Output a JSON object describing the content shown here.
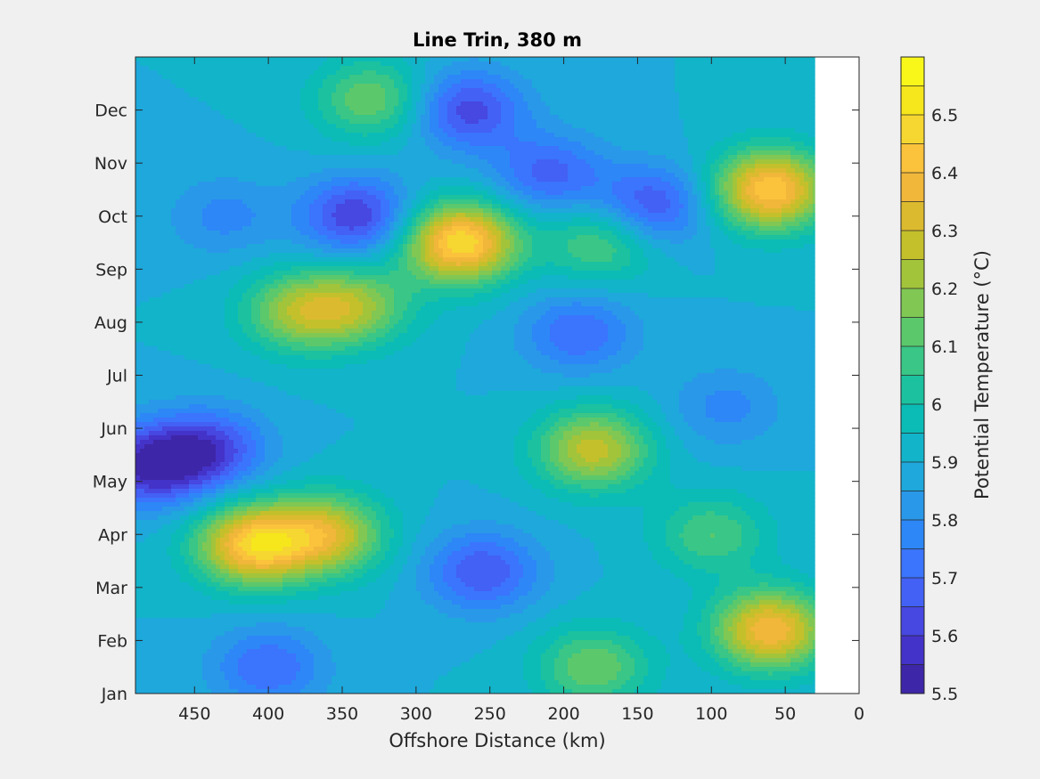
{
  "chart_data": {
    "type": "heatmap",
    "title": "Line Trin, 380 m",
    "xlabel": "Offshore Distance (km)",
    "x_ticks": [
      450,
      400,
      350,
      300,
      250,
      200,
      150,
      100,
      50,
      0
    ],
    "xlim": [
      490,
      0
    ],
    "x_reversed": true,
    "data_extent_km": [
      490,
      30
    ],
    "y_ticks": [
      "Jan",
      "Feb",
      "Mar",
      "Apr",
      "May",
      "Jun",
      "Jul",
      "Aug",
      "Sep",
      "Oct",
      "Nov",
      "Dec"
    ],
    "colorbar": {
      "label": "Potential Temperature (°C)",
      "ticks": [
        5.5,
        5.6,
        5.7,
        5.8,
        5.9,
        6,
        6.1,
        6.2,
        6.3,
        6.4,
        6.5
      ],
      "range": [
        5.5,
        6.6
      ],
      "levels": 22,
      "colormap": "parula"
    },
    "background_value": 5.9,
    "features": [
      {
        "x": 480,
        "month": 4.3,
        "value": 5.55
      },
      {
        "x": 440,
        "month": 4.6,
        "value": 5.62
      },
      {
        "x": 410,
        "month": 2.8,
        "value": 6.45
      },
      {
        "x": 360,
        "month": 3.0,
        "value": 6.3
      },
      {
        "x": 380,
        "month": 7.2,
        "value": 6.2
      },
      {
        "x": 340,
        "month": 7.3,
        "value": 6.18
      },
      {
        "x": 270,
        "month": 8.5,
        "value": 6.5
      },
      {
        "x": 340,
        "month": 9.0,
        "value": 5.6
      },
      {
        "x": 255,
        "month": 2.3,
        "value": 5.65
      },
      {
        "x": 265,
        "month": 11.0,
        "value": 5.62
      },
      {
        "x": 210,
        "month": 9.8,
        "value": 5.68
      },
      {
        "x": 140,
        "month": 9.2,
        "value": 5.64
      },
      {
        "x": 175,
        "month": 8.5,
        "value": 6.12
      },
      {
        "x": 180,
        "month": 4.6,
        "value": 6.28
      },
      {
        "x": 180,
        "month": 0.5,
        "value": 6.15
      },
      {
        "x": 60,
        "month": 1.2,
        "value": 6.4
      },
      {
        "x": 60,
        "month": 9.5,
        "value": 6.45
      },
      {
        "x": 90,
        "month": 5.4,
        "value": 5.78
      },
      {
        "x": 190,
        "month": 6.8,
        "value": 5.7
      },
      {
        "x": 400,
        "month": 0.5,
        "value": 5.7
      },
      {
        "x": 330,
        "month": 11.2,
        "value": 6.15
      },
      {
        "x": 430,
        "month": 9.0,
        "value": 5.78
      },
      {
        "x": 100,
        "month": 3.0,
        "value": 6.1
      }
    ]
  }
}
